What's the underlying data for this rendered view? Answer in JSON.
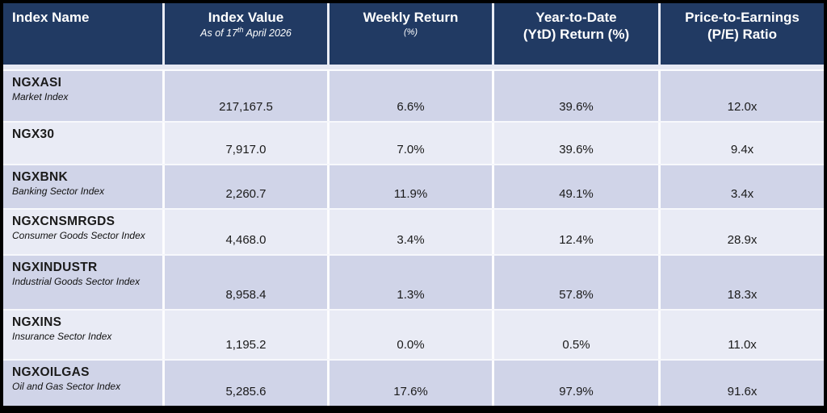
{
  "colors": {
    "header_bg": "#213A63",
    "header_text": "#FFFFFF",
    "row_dark": "#D0D4E8",
    "row_light": "#E9EBF5",
    "outer_border": "#000000",
    "body_text": "#1A1A1A"
  },
  "table": {
    "headers": [
      {
        "title": "Index Name"
      },
      {
        "title": "Index Value",
        "sub_prefix": "As of 17",
        "sub_sup": "th",
        "sub_suffix": " April 2026"
      },
      {
        "title": "Weekly Return",
        "subtitle": "(%)"
      },
      {
        "title": "Year-to-Date",
        "title2": "(YtD) Return (%)"
      },
      {
        "title": "Price-to-Earnings",
        "title2": "(P/E) Ratio"
      }
    ],
    "rows": [
      {
        "name": "NGXASI",
        "subtitle": "Market Index",
        "value": "217,167.5",
        "weekly": "6.6%",
        "ytd": "39.6%",
        "pe": "12.0x"
      },
      {
        "name": "NGX30",
        "subtitle": "",
        "value": "7,917.0",
        "weekly": "7.0%",
        "ytd": "39.6%",
        "pe": "9.4x"
      },
      {
        "name": "NGXBNK",
        "subtitle": "Banking Sector Index",
        "value": "2,260.7",
        "weekly": "11.9%",
        "ytd": "49.1%",
        "pe": "3.4x"
      },
      {
        "name": "NGXCNSMRGDS",
        "subtitle": "Consumer Goods Sector Index",
        "value": "4,468.0",
        "weekly": "3.4%",
        "ytd": "12.4%",
        "pe": "28.9x"
      },
      {
        "name": "NGXINDUSTR",
        "subtitle": "Industrial Goods Sector Index",
        "value": "8,958.4",
        "weekly": "1.3%",
        "ytd": "57.8%",
        "pe": "18.3x"
      },
      {
        "name": "NGXINS",
        "subtitle": "Insurance Sector Index",
        "value": "1,195.2",
        "weekly": "0.0%",
        "ytd": "0.5%",
        "pe": "11.0x"
      },
      {
        "name": "NGXOILGAS",
        "subtitle": "Oil and Gas Sector Index",
        "value": "5,285.6",
        "weekly": "17.6%",
        "ytd": "97.9%",
        "pe": "91.6x"
      }
    ]
  },
  "chart_data": {
    "type": "table",
    "title": "",
    "columns": [
      "Index Name",
      "Index Value (As of 17th April 2026)",
      "Weekly Return (%)",
      "Year-to-Date (YtD) Return (%)",
      "Price-to-Earnings (P/E) Ratio"
    ],
    "rows": [
      [
        "NGXASI (Market Index)",
        217167.5,
        6.6,
        39.6,
        "12.0x"
      ],
      [
        "NGX30",
        7917.0,
        7.0,
        39.6,
        "9.4x"
      ],
      [
        "NGXBNK (Banking Sector Index)",
        2260.7,
        11.9,
        49.1,
        "3.4x"
      ],
      [
        "NGXCNSMRGDS (Consumer Goods Sector Index)",
        4468.0,
        3.4,
        12.4,
        "28.9x"
      ],
      [
        "NGXINDUSTR (Industrial Goods Sector Index)",
        8958.4,
        1.3,
        57.8,
        "18.3x"
      ],
      [
        "NGXINS (Insurance Sector Index)",
        1195.2,
        0.0,
        0.5,
        "11.0x"
      ],
      [
        "NGXOILGAS (Oil and Gas Sector Index)",
        5285.6,
        17.6,
        97.9,
        "91.6x"
      ]
    ]
  }
}
